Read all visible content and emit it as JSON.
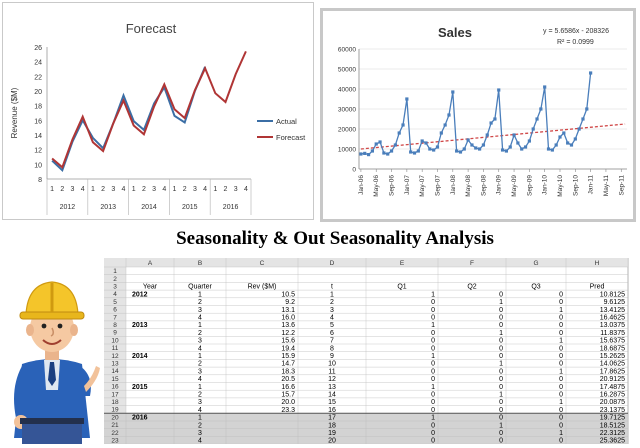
{
  "heading": "Seasonality & Out Seasonality Analysis",
  "chart_data": [
    {
      "type": "line",
      "title": "Forecast",
      "ylabel": "Revenue ($M)",
      "ylim": [
        8,
        26
      ],
      "yticks": [
        8,
        10,
        12,
        14,
        16,
        18,
        20,
        22,
        24,
        26
      ],
      "categories": [
        "1",
        "2",
        "3",
        "4",
        "1",
        "2",
        "3",
        "4",
        "1",
        "2",
        "3",
        "4",
        "1",
        "2",
        "3",
        "4",
        "1",
        "2",
        "3",
        "4"
      ],
      "year_groups": [
        "2012",
        "2013",
        "2014",
        "2015",
        "2016"
      ],
      "legend_position": "right",
      "series": [
        {
          "name": "Actual",
          "color": "#3b6ea5",
          "values": [
            10.5,
            9.2,
            13.1,
            16.0,
            13.6,
            12.2,
            15.6,
            19.4,
            15.9,
            14.7,
            18.3,
            20.5,
            16.6,
            15.7,
            20.0,
            23.3,
            null,
            null,
            null,
            null
          ]
        },
        {
          "name": "Forecast",
          "color": "#b03535",
          "values": [
            10.8,
            9.6,
            13.4,
            16.5,
            13.0,
            11.8,
            15.6,
            18.7,
            15.3,
            14.1,
            17.9,
            20.9,
            17.5,
            16.3,
            20.1,
            23.1,
            19.7,
            18.5,
            22.3,
            25.4
          ]
        }
      ]
    },
    {
      "type": "line",
      "title": "Sales",
      "ylim": [
        0,
        60000
      ],
      "yticks": [
        0,
        10000,
        20000,
        30000,
        40000,
        50000,
        60000
      ],
      "x_tick_labels": [
        "Jan-06",
        "May-06",
        "Sep-06",
        "Jan-07",
        "May-07",
        "Sep-07",
        "Jan-08",
        "May-08",
        "Sep-08",
        "Jan-09",
        "May-09",
        "Sep-09",
        "Jan-10",
        "May-10",
        "Sep-10",
        "Jan-11",
        "May-11",
        "Sep-11"
      ],
      "equation": "y = 5.6586x - 208326",
      "r_squared": "R² = 0.0999",
      "series_color": "#4a7ebb",
      "trend_color": "#d04848",
      "months_since_jan06": [
        0,
        1,
        2,
        3,
        4,
        5,
        6,
        7,
        8,
        9,
        10,
        11,
        12,
        13,
        14,
        15,
        16,
        17,
        18,
        19,
        20,
        21,
        22,
        23,
        24,
        25,
        26,
        27,
        28,
        29,
        30,
        31,
        32,
        33,
        34,
        35,
        36,
        37,
        38,
        39,
        40,
        41,
        42,
        43,
        44,
        45,
        46,
        47,
        48,
        49,
        50,
        51,
        52,
        53,
        54,
        55,
        56,
        57,
        58,
        59,
        60
      ],
      "values": [
        7500,
        7800,
        7200,
        9000,
        12500,
        13500,
        8000,
        7500,
        9000,
        12000,
        18000,
        22000,
        35000,
        8500,
        8000,
        9000,
        14000,
        13000,
        10000,
        9500,
        11000,
        18000,
        22000,
        27000,
        38500,
        9000,
        8500,
        10000,
        14500,
        12000,
        10500,
        10000,
        12000,
        17000,
        23000,
        25000,
        39500,
        9500,
        9000,
        11000,
        17000,
        13000,
        10000,
        11000,
        14000,
        20000,
        25000,
        30000,
        41000,
        10000,
        9500,
        12000,
        16000,
        18000,
        13000,
        12000,
        15000,
        20000,
        25000,
        30000,
        48000
      ],
      "trend": {
        "from": 10000,
        "to": 22500
      }
    },
    {
      "type": "table",
      "column_letters": [
        "A",
        "B",
        "C",
        "D",
        "E",
        "F",
        "G",
        "H"
      ],
      "headers": [
        "Year",
        "Quarter",
        "Rev ($M)",
        "t",
        "Q1",
        "Q2",
        "Q3",
        "Pred"
      ],
      "row_numbers": [
        "1",
        "2",
        "3",
        "4",
        "5",
        "6",
        "7",
        "8",
        "9",
        "10",
        "11",
        "12",
        "13",
        "14",
        "15",
        "16",
        "17",
        "18",
        "19",
        "20",
        "21",
        "22",
        "23"
      ],
      "rows": [
        [
          "2012",
          "1",
          "10.5",
          "1",
          "1",
          "0",
          "0",
          "10.8125"
        ],
        [
          "",
          "2",
          "9.2",
          "2",
          "0",
          "1",
          "0",
          "9.6125"
        ],
        [
          "",
          "3",
          "13.1",
          "3",
          "0",
          "0",
          "1",
          "13.4125"
        ],
        [
          "",
          "4",
          "16.0",
          "4",
          "0",
          "0",
          "0",
          "16.4625"
        ],
        [
          "2013",
          "1",
          "13.6",
          "5",
          "1",
          "0",
          "0",
          "13.0375"
        ],
        [
          "",
          "2",
          "12.2",
          "6",
          "0",
          "1",
          "0",
          "11.8375"
        ],
        [
          "",
          "3",
          "15.6",
          "7",
          "0",
          "0",
          "1",
          "15.6375"
        ],
        [
          "",
          "4",
          "19.4",
          "8",
          "0",
          "0",
          "0",
          "18.6875"
        ],
        [
          "2014",
          "1",
          "15.9",
          "9",
          "1",
          "0",
          "0",
          "15.2625"
        ],
        [
          "",
          "2",
          "14.7",
          "10",
          "0",
          "1",
          "0",
          "14.0625"
        ],
        [
          "",
          "3",
          "18.3",
          "11",
          "0",
          "0",
          "1",
          "17.8625"
        ],
        [
          "",
          "4",
          "20.5",
          "12",
          "0",
          "0",
          "0",
          "20.9125"
        ],
        [
          "2015",
          "1",
          "16.6",
          "13",
          "1",
          "0",
          "0",
          "17.4875"
        ],
        [
          "",
          "2",
          "15.7",
          "14",
          "0",
          "1",
          "0",
          "16.2875"
        ],
        [
          "",
          "3",
          "20.0",
          "15",
          "0",
          "0",
          "1",
          "20.0875"
        ],
        [
          "",
          "4",
          "23.3",
          "16",
          "0",
          "0",
          "0",
          "23.1375"
        ],
        [
          "2016",
          "1",
          "",
          "17",
          "1",
          "0",
          "0",
          "19.7125"
        ],
        [
          "",
          "2",
          "",
          "18",
          "0",
          "1",
          "0",
          "18.5125"
        ],
        [
          "",
          "3",
          "",
          "19",
          "0",
          "0",
          "1",
          "22.3125"
        ],
        [
          "",
          "4",
          "",
          "20",
          "0",
          "0",
          "0",
          "25.3625"
        ]
      ]
    }
  ]
}
